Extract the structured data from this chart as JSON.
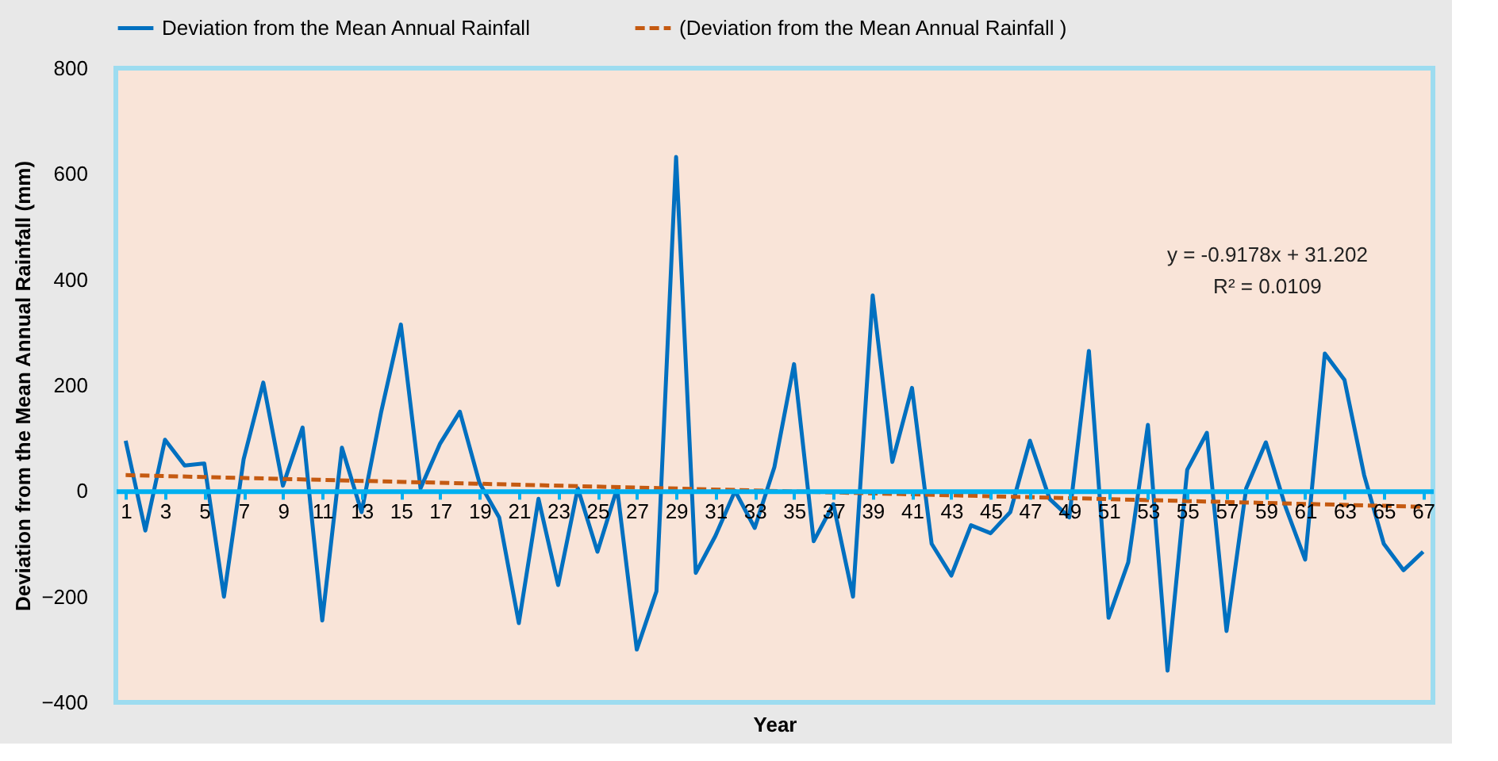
{
  "chart_data": {
    "type": "line",
    "xlabel": "Year",
    "ylabel": "Deviation from the Mean Annual Rainfall (mm)",
    "x": [
      1,
      2,
      3,
      4,
      5,
      6,
      7,
      8,
      9,
      10,
      11,
      12,
      13,
      14,
      15,
      16,
      17,
      18,
      19,
      20,
      21,
      22,
      23,
      24,
      25,
      26,
      27,
      28,
      29,
      30,
      31,
      32,
      33,
      34,
      35,
      36,
      37,
      38,
      39,
      40,
      41,
      42,
      43,
      44,
      45,
      46,
      47,
      48,
      49,
      50,
      51,
      52,
      53,
      54,
      55,
      56,
      57,
      58,
      59,
      60,
      61,
      62,
      63,
      64,
      65,
      66,
      67
    ],
    "series": [
      {
        "name": "Deviation from the Mean Annual Rainfall",
        "color": "#0070c0",
        "line_style": "solid",
        "values": [
          95,
          -75,
          97,
          48,
          52,
          -200,
          60,
          205,
          10,
          120,
          -245,
          82,
          -40,
          150,
          315,
          5,
          90,
          150,
          15,
          -50,
          -250,
          -15,
          -178,
          5,
          -115,
          5,
          -300,
          -190,
          632,
          -155,
          -85,
          0,
          -70,
          45,
          240,
          -95,
          -25,
          -200,
          370,
          55,
          195,
          -100,
          -160,
          -65,
          -80,
          -40,
          95,
          -15,
          -50,
          265,
          -240,
          -135,
          125,
          -340,
          40,
          110,
          -265,
          5,
          92,
          -30,
          -130,
          260,
          210,
          30,
          -100,
          -150,
          -115
        ]
      },
      {
        "name": "(Deviation from the Mean Annual Rainfall )",
        "color": "#c55a11",
        "line_style": "dashed",
        "x": [
          1,
          67
        ],
        "values": [
          30,
          -30
        ]
      }
    ],
    "xlim": [
      0.5,
      67.5
    ],
    "xticks": [
      1,
      3,
      5,
      7,
      9,
      11,
      13,
      15,
      17,
      19,
      21,
      23,
      25,
      27,
      29,
      31,
      33,
      35,
      37,
      39,
      41,
      43,
      45,
      47,
      49,
      51,
      53,
      55,
      57,
      59,
      61,
      63,
      65,
      67
    ],
    "ylim": [
      -400,
      800
    ],
    "yticks": [
      -400,
      -200,
      0,
      200,
      400,
      600,
      800
    ],
    "annotations": [
      "y = -0.9178x + 31.202",
      "R² = 0.0109"
    ],
    "grid": false,
    "legend": "top",
    "marker": "none"
  }
}
